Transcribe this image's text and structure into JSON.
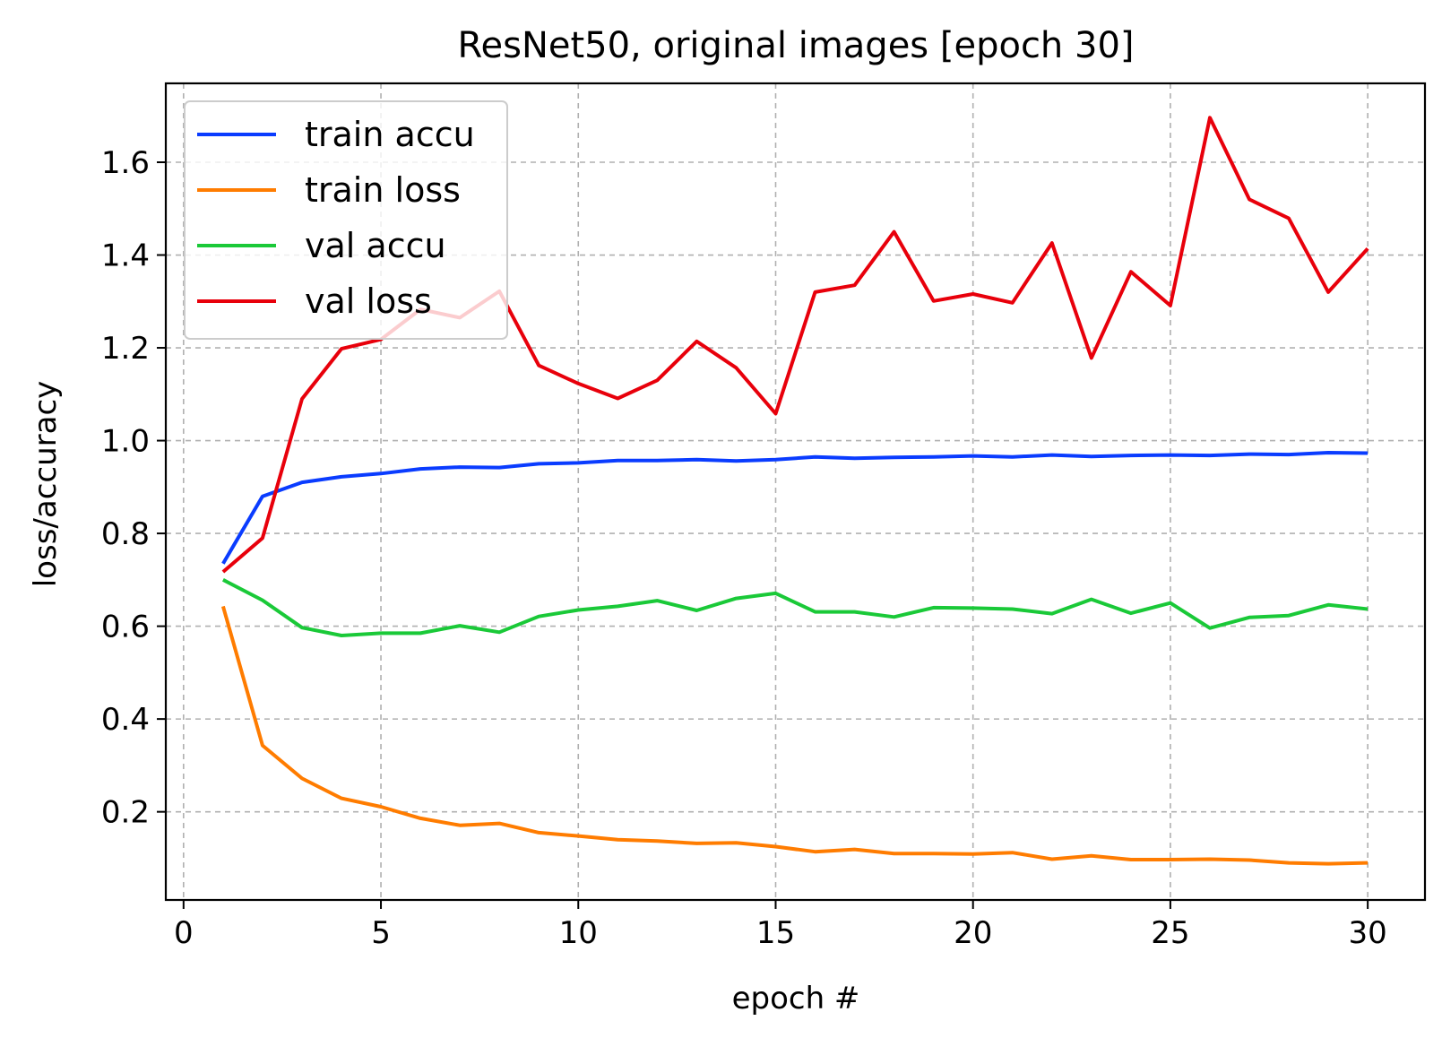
{
  "chart_data": {
    "type": "line",
    "title": "ResNet50, original images [epoch 30]",
    "xlabel": "epoch #",
    "ylabel": "loss/accuracy",
    "xlim": [
      -0.45,
      31.45
    ],
    "ylim": [
      0.01,
      1.77
    ],
    "xticks": [
      0,
      5,
      10,
      15,
      20,
      25,
      30
    ],
    "xtick_labels": [
      "0",
      "5",
      "10",
      "15",
      "20",
      "25",
      "30"
    ],
    "yticks": [
      0.2,
      0.4,
      0.6,
      0.8,
      1.0,
      1.2,
      1.4,
      1.6
    ],
    "ytick_labels": [
      "0.2",
      "0.4",
      "0.6",
      "0.8",
      "1.0",
      "1.2",
      "1.4",
      "1.6"
    ],
    "grid": true,
    "legend_position": "top-left",
    "x": [
      1,
      2,
      3,
      4,
      5,
      6,
      7,
      8,
      9,
      10,
      11,
      12,
      13,
      14,
      15,
      16,
      17,
      18,
      19,
      20,
      21,
      22,
      23,
      24,
      25,
      26,
      27,
      28,
      29,
      30
    ],
    "series": [
      {
        "name": "train accu",
        "color": "#0a3cff",
        "values": [
          0.735,
          0.88,
          0.91,
          0.922,
          0.929,
          0.939,
          0.943,
          0.942,
          0.95,
          0.952,
          0.957,
          0.957,
          0.959,
          0.956,
          0.959,
          0.965,
          0.962,
          0.964,
          0.965,
          0.967,
          0.965,
          0.969,
          0.966,
          0.968,
          0.969,
          0.968,
          0.971,
          0.97,
          0.974,
          0.973
        ]
      },
      {
        "name": "train loss",
        "color": "#ff7c00",
        "values": [
          0.643,
          0.343,
          0.272,
          0.229,
          0.211,
          0.186,
          0.171,
          0.175,
          0.155,
          0.148,
          0.14,
          0.137,
          0.132,
          0.133,
          0.125,
          0.114,
          0.119,
          0.11,
          0.11,
          0.109,
          0.112,
          0.098,
          0.105,
          0.097,
          0.097,
          0.098,
          0.096,
          0.09,
          0.088,
          0.09
        ]
      },
      {
        "name": "val accu",
        "color": "#1ac938",
        "values": [
          0.7,
          0.656,
          0.597,
          0.58,
          0.585,
          0.585,
          0.601,
          0.587,
          0.621,
          0.635,
          0.643,
          0.655,
          0.634,
          0.66,
          0.671,
          0.631,
          0.631,
          0.62,
          0.64,
          0.639,
          0.637,
          0.627,
          0.658,
          0.628,
          0.65,
          0.596,
          0.619,
          0.623,
          0.646,
          0.637
        ]
      },
      {
        "name": "val loss",
        "color": "#e8000b",
        "values": [
          0.717,
          0.79,
          1.09,
          1.198,
          1.218,
          1.283,
          1.265,
          1.322,
          1.162,
          1.123,
          1.091,
          1.13,
          1.214,
          1.157,
          1.058,
          1.32,
          1.335,
          1.45,
          1.301,
          1.316,
          1.297,
          1.426,
          1.178,
          1.364,
          1.291,
          1.696,
          1.52,
          1.479,
          1.32,
          1.414
        ]
      }
    ]
  }
}
